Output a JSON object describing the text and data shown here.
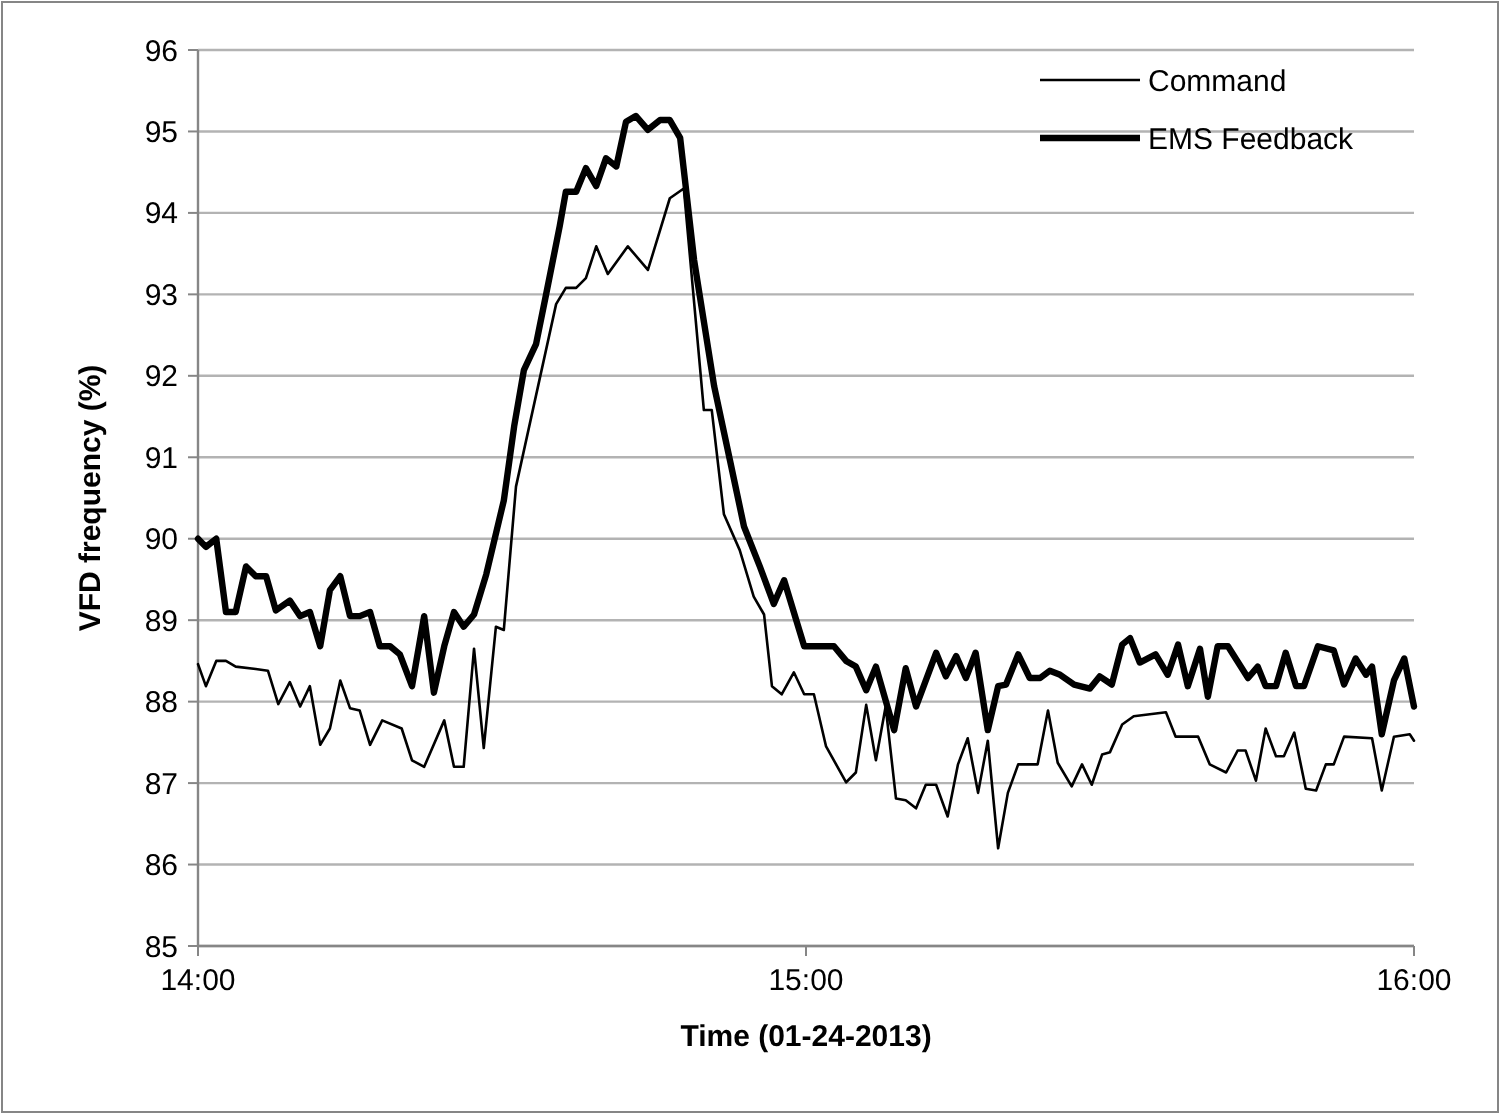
{
  "chart_data": {
    "type": "line",
    "xlabel": "Time (01-24-2013)",
    "ylabel": "VFD frequency (%)",
    "xlim": [
      14,
      16
    ],
    "xticks": [
      {
        "value": 14,
        "label": "14:00"
      },
      {
        "value": 15,
        "label": "15:00"
      },
      {
        "value": 16,
        "label": "16:00"
      }
    ],
    "ylim": [
      85,
      96
    ],
    "yticks": [
      85,
      86,
      87,
      88,
      89,
      90,
      91,
      92,
      93,
      94,
      95,
      96
    ],
    "grid": "y",
    "legend": "top right",
    "marker": "none",
    "series": [
      {
        "name": "Command",
        "color": "#000000",
        "x": [
          14.0,
          14.013,
          14.03,
          14.046,
          14.062,
          14.095,
          14.115,
          14.132,
          14.151,
          14.168,
          14.184,
          14.201,
          14.217,
          14.234,
          14.25,
          14.266,
          14.283,
          14.303,
          14.335,
          14.352,
          14.372,
          14.405,
          14.421,
          14.437,
          14.454,
          14.47,
          14.49,
          14.503,
          14.523,
          14.589,
          14.605,
          14.622,
          14.638,
          14.655,
          14.674,
          14.707,
          14.74,
          14.776,
          14.799,
          14.832,
          14.845,
          14.865,
          14.891,
          14.914,
          14.931,
          14.944,
          14.96,
          14.98,
          14.997,
          15.013,
          15.033,
          15.066,
          15.082,
          15.099,
          15.115,
          15.131,
          15.148,
          15.164,
          15.181,
          15.197,
          15.214,
          15.233,
          15.25,
          15.266,
          15.283,
          15.299,
          15.316,
          15.332,
          15.349,
          15.381,
          15.398,
          15.414,
          15.437,
          15.454,
          15.47,
          15.487,
          15.5,
          15.52,
          15.539,
          15.592,
          15.608,
          15.645,
          15.664,
          15.691,
          15.71,
          15.723,
          15.74,
          15.756,
          15.773,
          15.786,
          15.803,
          15.822,
          15.839,
          15.855,
          15.868,
          15.885,
          15.931,
          15.947,
          15.967,
          15.993,
          16.0
        ],
        "values": [
          88.46,
          88.19,
          88.5,
          88.5,
          88.43,
          88.4,
          88.38,
          87.97,
          88.24,
          87.94,
          88.19,
          87.47,
          87.67,
          88.26,
          87.92,
          87.89,
          87.47,
          87.77,
          87.67,
          87.28,
          87.2,
          87.77,
          87.2,
          87.2,
          88.65,
          87.43,
          88.92,
          88.88,
          90.64,
          92.88,
          93.08,
          93.08,
          93.2,
          93.59,
          93.25,
          93.59,
          93.3,
          94.18,
          94.3,
          91.58,
          91.58,
          90.3,
          89.86,
          89.29,
          89.07,
          88.19,
          88.09,
          88.36,
          88.09,
          88.09,
          87.45,
          87.01,
          87.13,
          87.96,
          87.28,
          87.94,
          86.81,
          86.79,
          86.69,
          86.98,
          86.98,
          86.59,
          87.23,
          87.55,
          86.88,
          87.52,
          86.2,
          86.88,
          87.23,
          87.23,
          87.89,
          87.25,
          86.96,
          87.23,
          86.98,
          87.35,
          87.38,
          87.72,
          87.82,
          87.87,
          87.57,
          87.57,
          87.23,
          87.13,
          87.4,
          87.4,
          87.03,
          87.67,
          87.33,
          87.33,
          87.62,
          86.93,
          86.91,
          87.23,
          87.23,
          87.57,
          87.55,
          86.91,
          87.57,
          87.6,
          87.52
        ]
      },
      {
        "name": "EMS Feedback",
        "color": "#000000",
        "x": [
          14.0,
          14.013,
          14.03,
          14.046,
          14.062,
          14.079,
          14.095,
          14.112,
          14.128,
          14.151,
          14.168,
          14.184,
          14.201,
          14.217,
          14.234,
          14.25,
          14.266,
          14.283,
          14.299,
          14.316,
          14.332,
          14.352,
          14.372,
          14.388,
          14.405,
          14.421,
          14.437,
          14.454,
          14.474,
          14.503,
          14.52,
          14.536,
          14.556,
          14.572,
          14.595,
          14.605,
          14.622,
          14.638,
          14.655,
          14.671,
          14.688,
          14.704,
          14.72,
          14.74,
          14.76,
          14.776,
          14.793,
          14.816,
          14.849,
          14.875,
          14.898,
          14.924,
          14.947,
          14.964,
          14.997,
          15.046,
          15.066,
          15.082,
          15.099,
          15.115,
          15.145,
          15.164,
          15.181,
          15.214,
          15.23,
          15.247,
          15.263,
          15.279,
          15.299,
          15.316,
          15.329,
          15.349,
          15.368,
          15.385,
          15.401,
          15.418,
          15.441,
          15.467,
          15.483,
          15.503,
          15.52,
          15.533,
          15.549,
          15.575,
          15.595,
          15.612,
          15.628,
          15.648,
          15.661,
          15.677,
          15.694,
          15.727,
          15.743,
          15.756,
          15.773,
          15.789,
          15.806,
          15.819,
          15.842,
          15.868,
          15.885,
          15.904,
          15.921,
          15.931,
          15.947,
          15.967,
          15.984,
          16.0
        ],
        "values": [
          90.0,
          89.9,
          90.0,
          89.1,
          89.1,
          89.66,
          89.54,
          89.54,
          89.12,
          89.24,
          89.05,
          89.1,
          88.68,
          89.37,
          89.54,
          89.05,
          89.05,
          89.1,
          88.68,
          88.68,
          88.58,
          88.19,
          89.05,
          88.11,
          88.68,
          89.1,
          88.92,
          89.07,
          89.56,
          90.47,
          91.38,
          92.07,
          92.39,
          92.98,
          93.84,
          94.26,
          94.26,
          94.55,
          94.33,
          94.67,
          94.57,
          95.12,
          95.19,
          95.02,
          95.14,
          95.14,
          94.92,
          93.42,
          91.87,
          90.96,
          90.15,
          89.66,
          89.2,
          89.49,
          88.68,
          88.68,
          88.5,
          88.43,
          88.14,
          88.43,
          87.65,
          88.41,
          87.94,
          88.6,
          88.31,
          88.56,
          88.29,
          88.6,
          87.65,
          88.19,
          88.21,
          88.58,
          88.29,
          88.29,
          88.38,
          88.33,
          88.21,
          88.16,
          88.31,
          88.21,
          88.7,
          88.78,
          88.48,
          88.58,
          88.33,
          88.7,
          88.19,
          88.65,
          88.06,
          88.68,
          88.68,
          88.29,
          88.43,
          88.19,
          88.19,
          88.6,
          88.19,
          88.19,
          88.68,
          88.63,
          88.21,
          88.53,
          88.33,
          88.43,
          87.6,
          88.26,
          88.53,
          87.94
        ]
      }
    ]
  }
}
